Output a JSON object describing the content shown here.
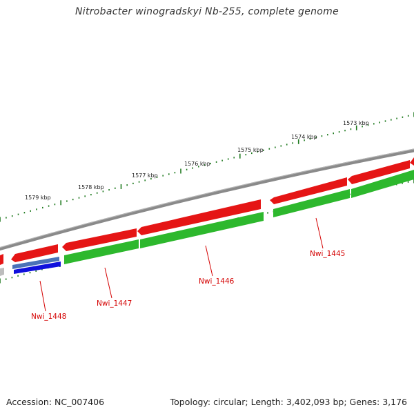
{
  "title": "Nitrobacter winogradskyi Nb-255, complete genome",
  "accession": "Accession: NC_007406",
  "stats": "Topology: circular; Length: 3,402,093 bp; Genes: 3,176",
  "colors": {
    "backbone": "#7a7a7a",
    "forward_gene": "#e51515",
    "reverse_gene": "#2db82d",
    "blue_feature": "#1010dd",
    "tick": "#1f7a1f",
    "label": "#d40000"
  },
  "kbp_labels": [
    "1573 kbp",
    "1574 kbp",
    "1575 kbp",
    "1576 kbp",
    "1577 kbp",
    "1578 kbp",
    "1579 kbp"
  ],
  "gene_labels": [
    "Nwi_1445",
    "Nwi_1446",
    "Nwi_1447",
    "Nwi_1448"
  ]
}
